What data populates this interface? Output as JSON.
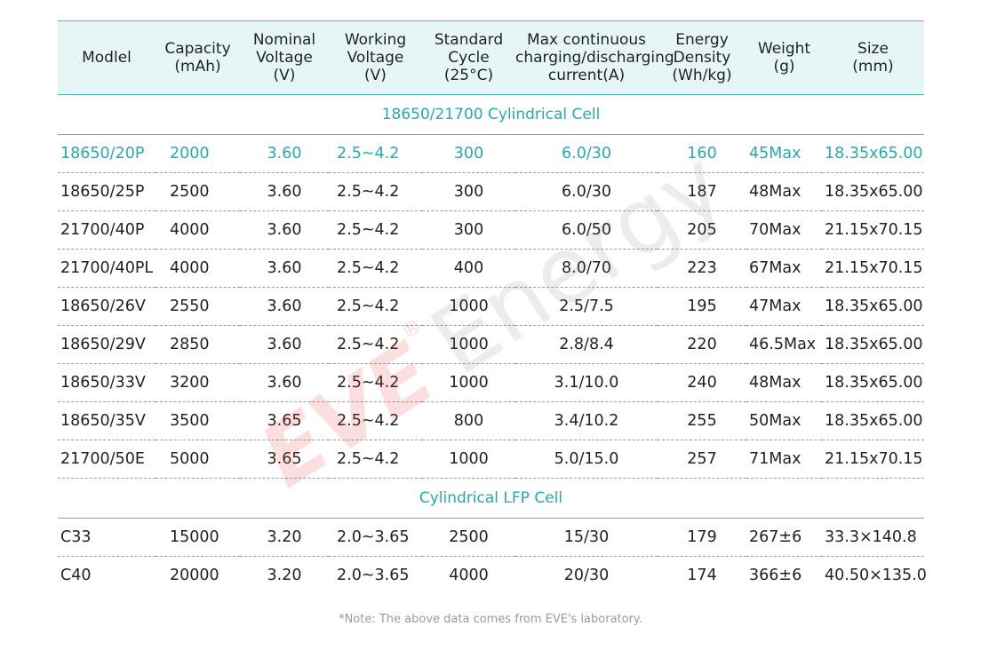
{
  "headers": [
    "Modlel",
    "Capacity\n(mAh)",
    "Nominal\nVoltage\n(V)",
    "Working\nVoltage\n(V)",
    "Standard\nCycle\n(25°C)",
    "Max continuous\ncharging/discharging\ncurrent(A)",
    "Energy\nDensity\n(Wh/kg)",
    "Weight\n(g)",
    "Size\n(mm)"
  ],
  "sections": [
    {
      "title": "18650/21700 Cylindrical Cell",
      "rows": [
        [
          "18650/20P",
          "2000",
          "3.60",
          "2.5~4.2",
          "300",
          "6.0/30",
          "160",
          "45Max",
          "18.35x65.00"
        ],
        [
          "18650/25P",
          "2500",
          "3.60",
          "2.5~4.2",
          "300",
          "6.0/30",
          "187",
          "48Max",
          "18.35x65.00"
        ],
        [
          "21700/40P",
          "4000",
          "3.60",
          "2.5~4.2",
          "300",
          "6.0/50",
          "205",
          "70Max",
          "21.15x70.15"
        ],
        [
          "21700/40PL",
          "4000",
          "3.60",
          "2.5~4.2",
          "400",
          "8.0/70",
          "223",
          "67Max",
          "21.15x70.15"
        ],
        [
          "18650/26V",
          "2550",
          "3.60",
          "2.5~4.2",
          "1000",
          "2.5/7.5",
          "195",
          "47Max",
          "18.35x65.00"
        ],
        [
          "18650/29V",
          "2850",
          "3.60",
          "2.5~4.2",
          "1000",
          "2.8/8.4",
          "220",
          "46.5Max",
          "18.35x65.00"
        ],
        [
          "18650/33V",
          "3200",
          "3.60",
          "2.5~4.2",
          "1000",
          "3.1/10.0",
          "240",
          "48Max",
          "18.35x65.00"
        ],
        [
          "18650/35V",
          "3500",
          "3.65",
          "2.5~4.2",
          "800",
          "3.4/10.2",
          "255",
          "50Max",
          "18.35x65.00"
        ],
        [
          "21700/50E",
          "5000",
          "3.65",
          "2.5~4.2",
          "1000",
          "5.0/15.0",
          "257",
          "71Max",
          "21.15x70.15"
        ]
      ]
    },
    {
      "title": "Cylindrical LFP Cell",
      "rows": [
        [
          "C33",
          "15000",
          "3.20",
          "2.0~3.65",
          "2500",
          "15/30",
          "179",
          "267±6",
          "33.3×140.8"
        ],
        [
          "C40",
          "20000",
          "3.20",
          "2.0~3.65",
          "4000",
          "20/30",
          "174",
          "366±6",
          "40.50×135.0"
        ]
      ]
    }
  ],
  "watermark": {
    "brand": "EVE",
    "reg": "®",
    "word": "Energy"
  },
  "note": "*Note: The above data comes from EVE's laboratory.",
  "colors": {
    "accent": "#28a9ae",
    "header_bg": "#e6f6f7"
  }
}
